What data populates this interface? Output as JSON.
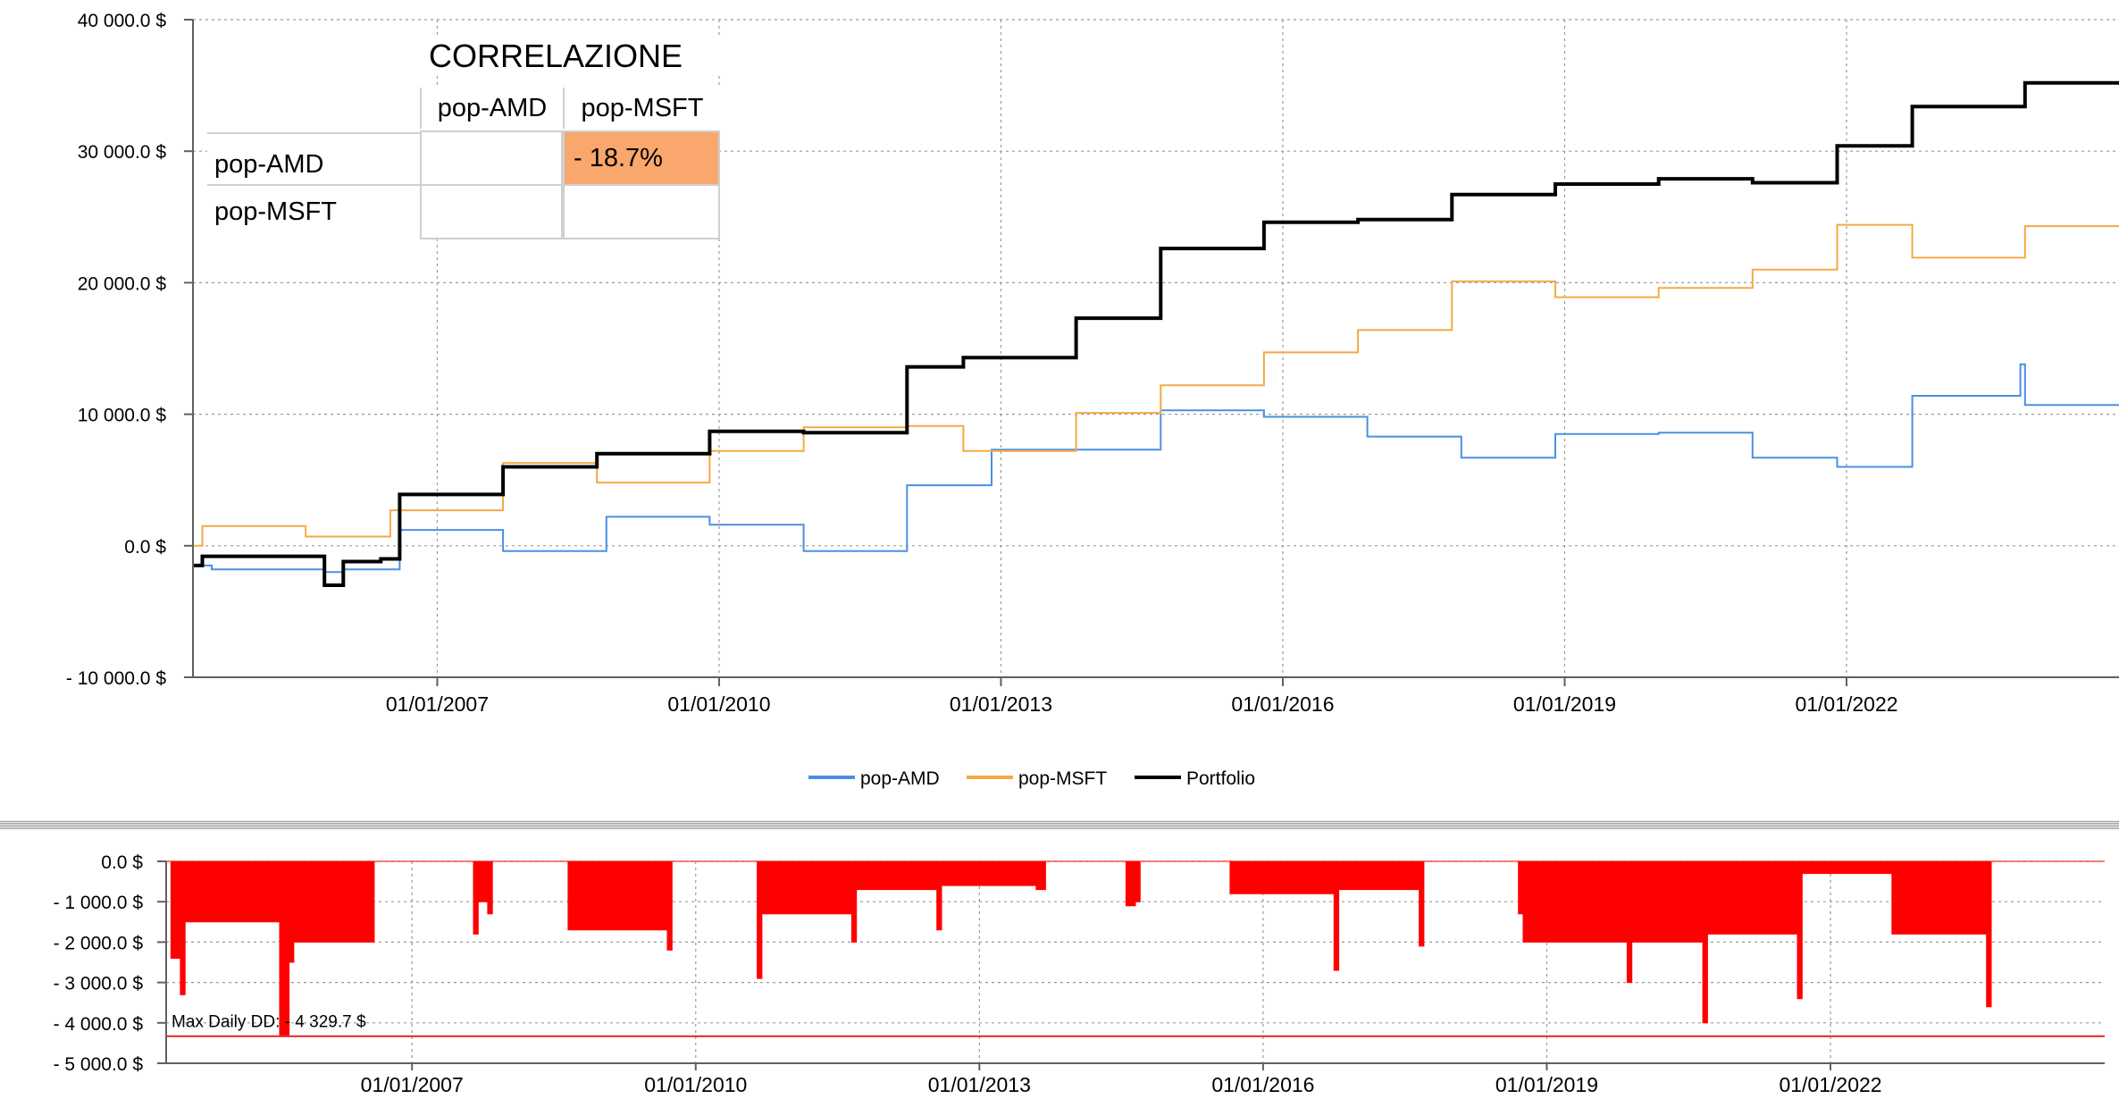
{
  "correlation_table": {
    "title": "CORRELAZIONE",
    "col_headers": [
      "pop-AMD",
      "pop-MSFT"
    ],
    "row_headers": [
      "pop-AMD",
      "pop-MSFT"
    ],
    "values": [
      [
        "",
        "-  18.7%"
      ],
      [
        "",
        ""
      ]
    ],
    "highlight_color": "#f9a76c"
  },
  "legend": {
    "items": [
      {
        "label": "pop-AMD",
        "color": "#4a90e2"
      },
      {
        "label": "pop-MSFT",
        "color": "#f5a945"
      },
      {
        "label": "Portfolio",
        "color": "#000000"
      }
    ]
  },
  "drawdown_annotation": "Max Daily DD: - 4 329.7 $",
  "chart_data": [
    {
      "type": "line",
      "x_tick_labels": [
        "01/01/2007",
        "01/01/2010",
        "01/01/2013",
        "01/01/2016",
        "01/01/2019",
        "01/01/2022"
      ],
      "x_tick_values": [
        2007,
        2010,
        2013,
        2016,
        2019,
        2022
      ],
      "xlim": [
        2004.4,
        2024.9
      ],
      "y_tick_labels": [
        "40 000.0 $",
        "30 000.0 $",
        "20 000.0 $",
        "10 000.0 $",
        "0.0 $",
        "- 10 000.0 $"
      ],
      "y_tick_values": [
        40000,
        30000,
        20000,
        10000,
        0,
        -10000
      ],
      "ylim": [
        -10000,
        40000
      ],
      "grid": true,
      "legend_position": "bottom-center",
      "series": [
        {
          "name": "pop-AMD",
          "color": "#4a90e2",
          "x": [
            2004.4,
            2004.6,
            2005.0,
            2005.5,
            2005.8,
            2006.0,
            2006.4,
            2006.6,
            2007.6,
            2007.7,
            2008.6,
            2008.8,
            2009.8,
            2009.9,
            2010.8,
            2010.9,
            2011.8,
            2012.0,
            2012.8,
            2012.9,
            2014.6,
            2014.7,
            2015.6,
            2015.8,
            2016.8,
            2016.9,
            2017.8,
            2017.9,
            2018.8,
            2018.9,
            2019.8,
            2020.0,
            2020.8,
            2021.0,
            2021.8,
            2021.9,
            2022.6,
            2022.7,
            2023.8,
            2023.85,
            2023.9,
            2024.9
          ],
          "y": [
            -1500,
            -1800,
            -1800,
            -1800,
            -2000,
            -1800,
            -1800,
            1200,
            1200,
            -400,
            -400,
            2200,
            2200,
            1600,
            1600,
            -400,
            -400,
            4600,
            4600,
            7300,
            7300,
            10300,
            10300,
            9800,
            9800,
            8300,
            8300,
            6700,
            6700,
            8500,
            8500,
            8600,
            8600,
            6700,
            6700,
            6000,
            6000,
            11400,
            11400,
            13800,
            10700,
            10700
          ]
        },
        {
          "name": "pop-MSFT",
          "color": "#f5a945",
          "x": [
            2004.4,
            2004.5,
            2005.0,
            2005.5,
            2005.6,
            2006.4,
            2006.5,
            2007.6,
            2007.7,
            2008.6,
            2008.7,
            2009.7,
            2009.9,
            2010.8,
            2010.9,
            2011.8,
            2012.0,
            2012.5,
            2012.6,
            2013.6,
            2013.8,
            2014.6,
            2014.7,
            2015.6,
            2015.8,
            2016.7,
            2016.8,
            2017.6,
            2017.8,
            2018.7,
            2018.9,
            2019.8,
            2020.0,
            2020.8,
            2021.0,
            2021.8,
            2021.9,
            2022.6,
            2022.7,
            2023.7,
            2023.9,
            2024.9
          ],
          "y": [
            0,
            1500,
            1500,
            1500,
            700,
            700,
            2700,
            2700,
            6300,
            6300,
            4800,
            4800,
            7200,
            7200,
            9000,
            9000,
            9100,
            9100,
            7200,
            7200,
            10100,
            10100,
            12200,
            12200,
            14700,
            14700,
            16400,
            16400,
            20100,
            20100,
            18900,
            18900,
            19600,
            19600,
            21000,
            21000,
            24400,
            24400,
            21900,
            21900,
            24300,
            24300
          ]
        },
        {
          "name": "Portfolio",
          "color": "#000000",
          "x": [
            2004.4,
            2004.5,
            2004.7,
            2005.0,
            2005.5,
            2005.8,
            2006.0,
            2006.4,
            2006.6,
            2007.6,
            2007.7,
            2008.6,
            2008.7,
            2009.7,
            2009.9,
            2010.8,
            2010.9,
            2011.8,
            2012.0,
            2012.5,
            2012.6,
            2013.6,
            2013.8,
            2014.6,
            2014.7,
            2015.6,
            2015.8,
            2016.7,
            2016.8,
            2017.6,
            2017.8,
            2018.7,
            2018.9,
            2019.8,
            2020.0,
            2020.8,
            2021.0,
            2021.8,
            2021.9,
            2022.6,
            2022.7,
            2023.7,
            2023.9,
            2024.9
          ],
          "y": [
            -1500,
            -800,
            -800,
            -800,
            -800,
            -3000,
            -1200,
            -1000,
            3900,
            3900,
            6000,
            6000,
            7000,
            7000,
            8700,
            8700,
            8600,
            8600,
            13600,
            13600,
            14300,
            14300,
            17300,
            17300,
            22600,
            22600,
            24600,
            24600,
            24800,
            24800,
            26700,
            26700,
            27500,
            27500,
            27900,
            27900,
            27600,
            27600,
            30400,
            30400,
            33400,
            33400,
            35200,
            35200
          ]
        }
      ]
    },
    {
      "type": "area",
      "x_tick_labels": [
        "01/01/2007",
        "01/01/2010",
        "01/01/2013",
        "01/01/2016",
        "01/01/2019",
        "01/01/2022"
      ],
      "x_tick_values": [
        2007,
        2010,
        2013,
        2016,
        2019,
        2022
      ],
      "xlim": [
        2004.4,
        2024.9
      ],
      "y_tick_labels": [
        "0.0 $",
        "- 1 000.0 $",
        "- 2 000.0 $",
        "- 3 000.0 $",
        "- 4 000.0 $",
        "- 5 000.0 $"
      ],
      "y_tick_values": [
        0,
        -1000,
        -2000,
        -3000,
        -4000,
        -5000
      ],
      "ylim": [
        -5000,
        0
      ],
      "grid": true,
      "fill_color": "#ff0000",
      "threshold_line": -4329.7,
      "series": [
        {
          "name": "Drawdown",
          "x": [
            2004.4,
            2004.45,
            2004.55,
            2004.6,
            2004.8,
            2005.5,
            2005.6,
            2005.7,
            2005.75,
            2005.8,
            2006.2,
            2006.3,
            2006.55,
            2006.6,
            2007.6,
            2007.65,
            2007.7,
            2007.8,
            2007.85,
            2008.6,
            2008.65,
            2008.8,
            2009.6,
            2009.7,
            2009.75,
            2010.6,
            2010.65,
            2010.7,
            2010.8,
            2011.6,
            2011.65,
            2011.7,
            2012.5,
            2012.55,
            2012.6,
            2012.9,
            2013.1,
            2013.5,
            2013.6,
            2013.7,
            2014.5,
            2014.55,
            2014.65,
            2014.7,
            2015.6,
            2015.65,
            2015.7,
            2016.7,
            2016.75,
            2016.8,
            2017.6,
            2017.65,
            2017.7,
            2018.6,
            2018.7,
            2018.75,
            2019.8,
            2019.85,
            2019.9,
            2020.6,
            2020.65,
            2020.7,
            2021.6,
            2021.65,
            2021.7,
            2021.85,
            2022.6,
            2022.65,
            2022.7,
            2023.6,
            2023.65,
            2023.7,
            2024.9
          ],
          "y": [
            0,
            -2400,
            -3300,
            -1500,
            -1500,
            -1500,
            -4300,
            -2500,
            -2000,
            -2000,
            -2000,
            -2000,
            -2000,
            0,
            0,
            -1800,
            -1000,
            -1300,
            0,
            0,
            -1700,
            -1700,
            -1700,
            -2200,
            0,
            0,
            -2900,
            -1300,
            -1300,
            -1300,
            -2000,
            -700,
            -700,
            -1700,
            -600,
            -600,
            -600,
            -600,
            -700,
            0,
            0,
            -1100,
            -1000,
            0,
            0,
            -800,
            -800,
            -800,
            -2700,
            -700,
            -700,
            -2100,
            0,
            0,
            -1300,
            -2000,
            -2000,
            -3000,
            -2000,
            -2000,
            -4000,
            -1800,
            -1800,
            -3400,
            -300,
            -300,
            -300,
            -1800,
            -1800,
            -1800,
            -3600,
            0,
            0
          ]
        }
      ]
    }
  ]
}
